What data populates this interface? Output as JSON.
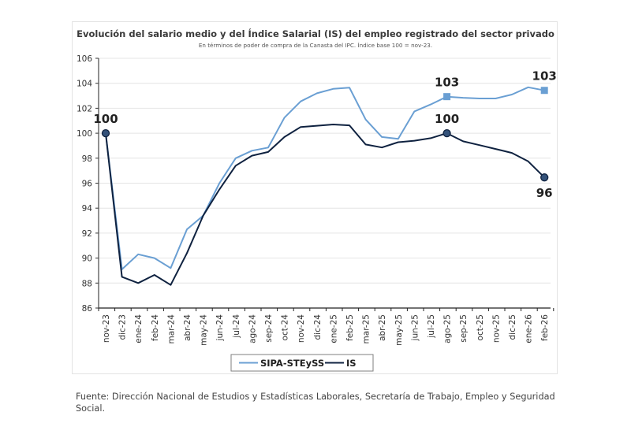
{
  "chart_data": {
    "type": "line",
    "title": "Evolución del salario medio y del Índice Salarial (IS) del empleo registrado del sector privado",
    "subtitle": "En términos de poder de compra de la Canasta del IPC. Índice base 100 = nov-23.",
    "xlabel": "",
    "ylabel": "",
    "ylim": [
      86,
      106
    ],
    "yticks": [
      86,
      88,
      90,
      92,
      94,
      96,
      98,
      100,
      102,
      104,
      106
    ],
    "grid": true,
    "legend": "bottom",
    "categories": [
      "nov-23",
      "dic-23",
      "ene-24",
      "feb-24",
      "mar-24",
      "abr-24",
      "may-24",
      "jun-24",
      "jul-24",
      "ago-24",
      "sep-24",
      "oct-24",
      "nov-24",
      "dic-24",
      "ene-25",
      "feb-25",
      "mar-25",
      "abr-25",
      "may-25",
      "jun-25",
      "jul-25",
      "ago-25",
      "sep-25",
      "oct-25",
      "nov-25",
      "dic-25",
      "ene-26",
      "feb-26"
    ],
    "series": [
      {
        "name": "SIPA-STEySS",
        "color": "#6a9fd3",
        "values": [
          100,
          89.1,
          90.3,
          90.0,
          89.2,
          92.3,
          93.4,
          96.0,
          98.0,
          98.6,
          98.85,
          101.25,
          102.55,
          103.2,
          103.55,
          103.65,
          101.1,
          99.7,
          99.55,
          101.75,
          102.3,
          102.93,
          102.84,
          102.78,
          102.78,
          103.1,
          103.68,
          103.43
        ],
        "markers": [
          {
            "index": 21,
            "shape": "square",
            "label": "103"
          },
          {
            "index": 27,
            "shape": "square",
            "label": "103"
          }
        ]
      },
      {
        "name": "IS",
        "color": "#0f2240",
        "values": [
          100,
          88.5,
          88.0,
          88.65,
          87.85,
          90.4,
          93.4,
          95.5,
          97.4,
          98.2,
          98.5,
          99.7,
          100.5,
          100.6,
          100.7,
          100.63,
          99.1,
          98.86,
          99.28,
          99.4,
          99.6,
          100.0,
          99.35,
          99.05,
          98.74,
          98.42,
          97.75,
          96.46
        ],
        "markers": [
          {
            "index": 0,
            "shape": "circle",
            "label": "100"
          },
          {
            "index": 21,
            "shape": "circle",
            "label": "100"
          },
          {
            "index": 27,
            "shape": "circle",
            "label": "96"
          }
        ]
      }
    ]
  },
  "source": {
    "prefix": "Fuente:",
    "text": " Dirección Nacional de Estudios y Estadísticas Laborales, Secretaría de Trabajo, Empleo y Seguridad Social."
  }
}
